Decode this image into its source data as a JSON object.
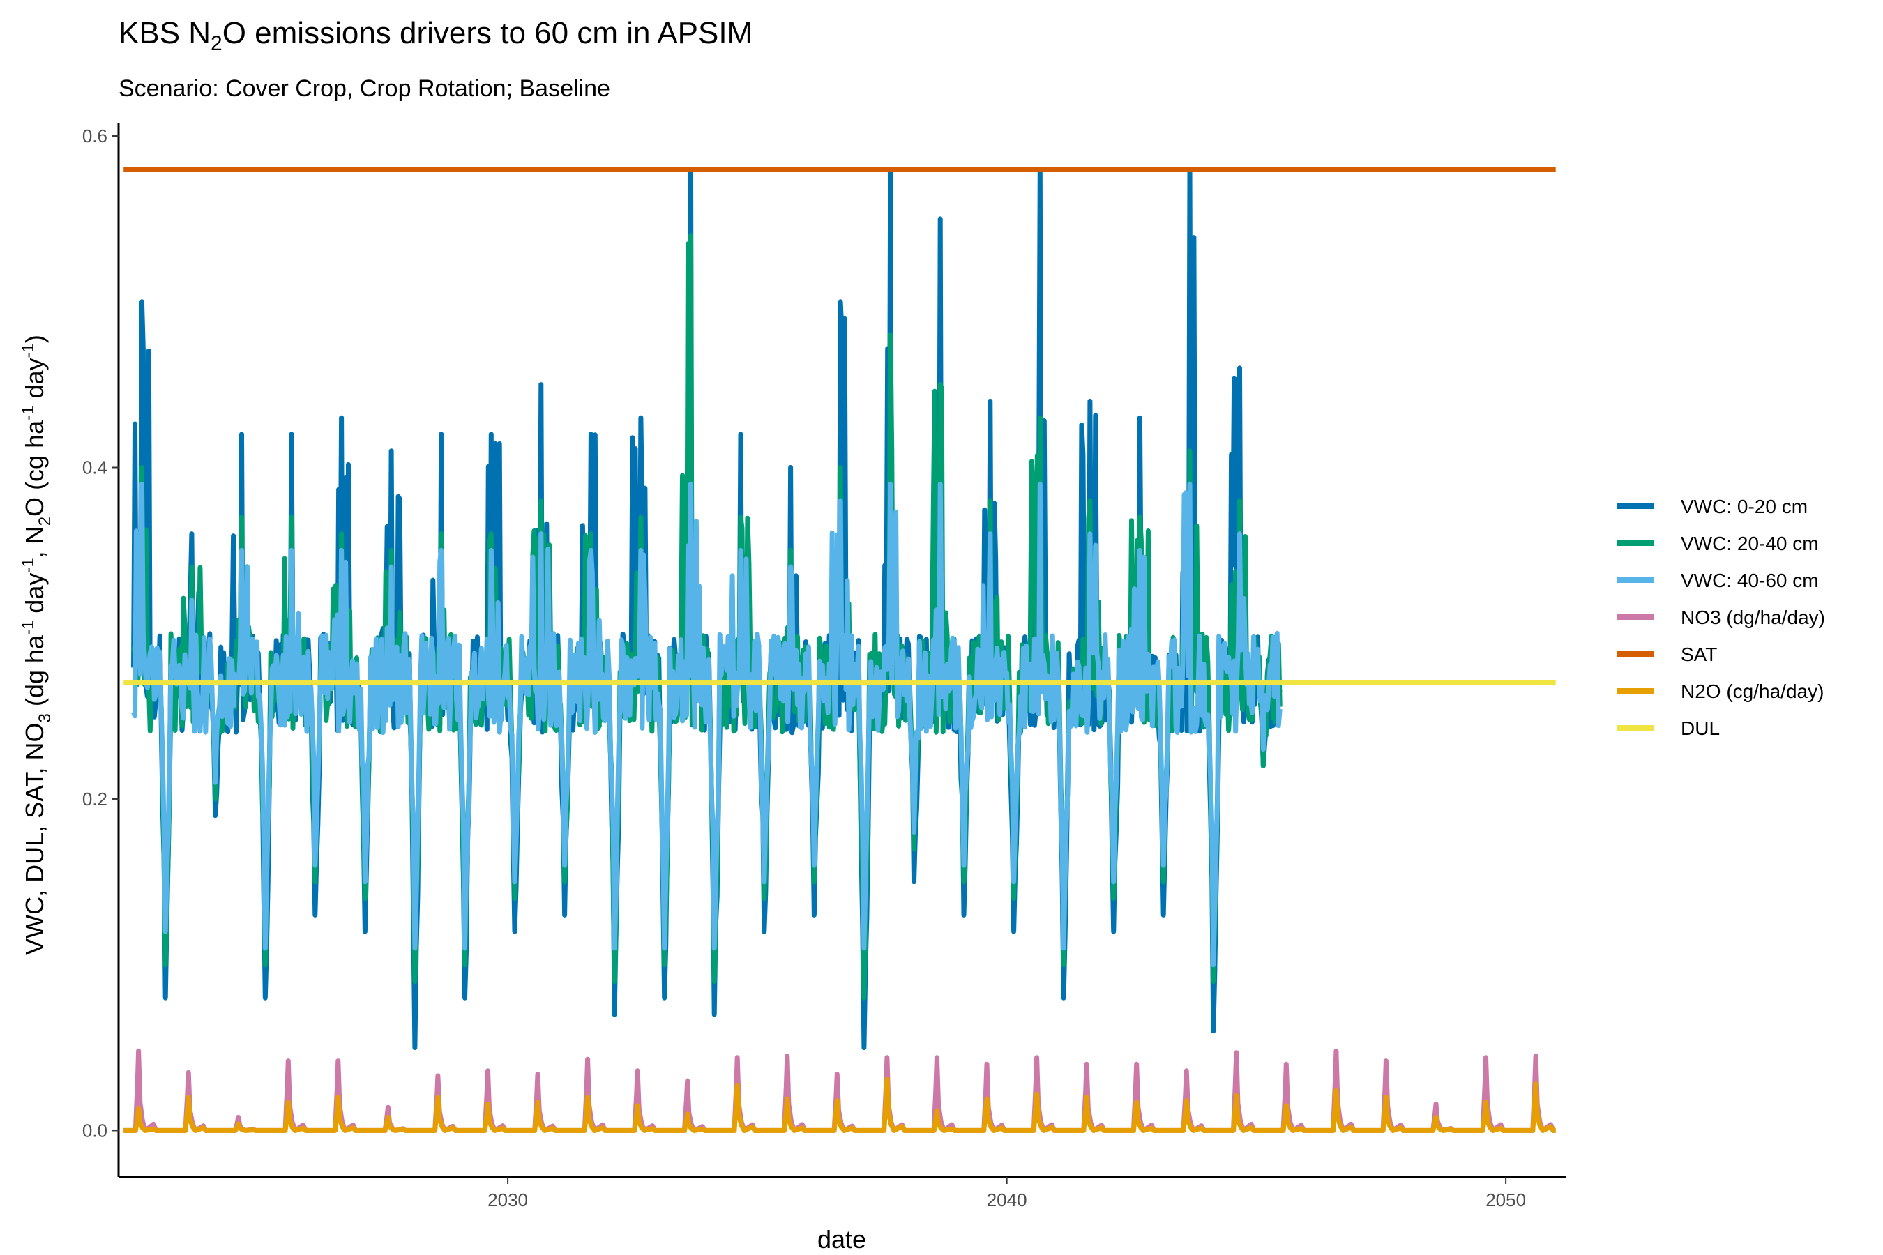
{
  "chart_data": {
    "type": "line",
    "title": {
      "pre": "KBS N",
      "sub": "2",
      "post": "O emissions drivers to 60 cm in APSIM"
    },
    "subtitle": "Scenario: Cover Crop, Crop Rotation; Baseline",
    "xlabel": "date",
    "ylabel": {
      "p1": "VWC, DUL, SAT, NO",
      "s1": "3",
      "p2": " (dg ha",
      "u1": "-1",
      "p3": " day",
      "u2": "-1",
      "p4": ", N",
      "s2": "2",
      "p5": "O  (cg ha",
      "u3": "-1",
      "p6": " day",
      "u4": "-1",
      "p7": ")"
    },
    "xlim": [
      2022.2,
      2051.2
    ],
    "ylim": [
      -0.028,
      0.608
    ],
    "x_ticks": [
      2030,
      2040,
      2050
    ],
    "y_ticks": [
      0.0,
      0.2,
      0.4,
      0.6
    ],
    "y_tick_labels": [
      "0.0",
      "0.2",
      "0.4",
      "0.6"
    ],
    "grid": false,
    "legend_position": "right",
    "series": [
      {
        "name": "VWC: 0-20 cm",
        "color": "#0072B2",
        "style": "daily_vwc",
        "annual_peaks": [
          0.5,
          0.36,
          0.42,
          0.42,
          0.43,
          0.41,
          0.42,
          0.42,
          0.45,
          0.42,
          0.43,
          0.58,
          0.42,
          0.4,
          0.5,
          0.58,
          0.55,
          0.44,
          0.58,
          0.44,
          0.43,
          0.58,
          0.46
        ],
        "annual_minimums": [
          0.08,
          0.19,
          0.08,
          0.13,
          0.12,
          0.05,
          0.08,
          0.12,
          0.13,
          0.07,
          0.08,
          0.07,
          0.12,
          0.13,
          0.05,
          0.15,
          0.13,
          0.12,
          0.08,
          0.12,
          0.13,
          0.06,
          0.22
        ]
      },
      {
        "name": "VWC: 20-40 cm",
        "color": "#009E73",
        "style": "daily_vwc",
        "annual_peaks": [
          0.4,
          0.34,
          0.37,
          0.37,
          0.36,
          0.35,
          0.36,
          0.36,
          0.38,
          0.36,
          0.37,
          0.54,
          0.37,
          0.35,
          0.4,
          0.48,
          0.45,
          0.38,
          0.43,
          0.38,
          0.37,
          0.41,
          0.38
        ],
        "annual_minimums": [
          0.1,
          0.2,
          0.1,
          0.15,
          0.14,
          0.09,
          0.1,
          0.14,
          0.15,
          0.09,
          0.1,
          0.09,
          0.14,
          0.15,
          0.08,
          0.17,
          0.15,
          0.14,
          0.1,
          0.14,
          0.15,
          0.09,
          0.22
        ]
      },
      {
        "name": "VWC: 40-60 cm",
        "color": "#56B4E9",
        "style": "daily_vwc",
        "annual_peaks": [
          0.39,
          0.32,
          0.35,
          0.35,
          0.35,
          0.34,
          0.35,
          0.35,
          0.36,
          0.35,
          0.35,
          0.39,
          0.35,
          0.34,
          0.38,
          0.39,
          0.39,
          0.36,
          0.39,
          0.36,
          0.35,
          0.39,
          0.36
        ],
        "annual_minimums": [
          0.12,
          0.21,
          0.11,
          0.16,
          0.15,
          0.11,
          0.11,
          0.15,
          0.16,
          0.11,
          0.11,
          0.11,
          0.15,
          0.16,
          0.11,
          0.18,
          0.16,
          0.15,
          0.11,
          0.15,
          0.16,
          0.1,
          0.23
        ]
      },
      {
        "name": "NO3 (dg/ha/day)",
        "color": "#CC79A7",
        "style": "annual_spikes",
        "spike_dates": [
          2022.6,
          2023.6,
          2024.6,
          2025.6,
          2026.6,
          2027.6,
          2028.6,
          2029.6,
          2030.6,
          2031.6,
          2032.6,
          2033.6,
          2034.6,
          2035.6,
          2036.6,
          2037.6,
          2038.6,
          2039.6,
          2040.6,
          2041.6,
          2042.6,
          2043.6,
          2044.6,
          2045.6,
          2046.6,
          2047.6,
          2048.6,
          2049.6,
          2050.6
        ],
        "spike_values": [
          0.048,
          0.035,
          0.008,
          0.042,
          0.042,
          0.014,
          0.033,
          0.036,
          0.034,
          0.043,
          0.036,
          0.03,
          0.044,
          0.045,
          0.034,
          0.044,
          0.044,
          0.04,
          0.044,
          0.04,
          0.04,
          0.036,
          0.047,
          0.04,
          0.048,
          0.042,
          0.016,
          0.044,
          0.045
        ]
      },
      {
        "name": "SAT",
        "color": "#D55E00",
        "style": "constant",
        "value": 0.58,
        "x_range": [
          2022.3,
          2051.0
        ]
      },
      {
        "name": "N2O (cg/ha/day)",
        "color": "#E69F00",
        "style": "annual_spikes",
        "spike_dates": [
          2022.6,
          2023.6,
          2024.6,
          2025.6,
          2026.6,
          2027.6,
          2028.6,
          2029.6,
          2030.6,
          2031.6,
          2032.6,
          2033.6,
          2034.6,
          2035.6,
          2036.6,
          2037.6,
          2038.6,
          2039.6,
          2040.6,
          2041.6,
          2042.6,
          2043.6,
          2044.6,
          2045.6,
          2046.6,
          2047.6,
          2048.6,
          2049.6,
          2050.6
        ],
        "spike_values": [
          0.013,
          0.02,
          0.004,
          0.017,
          0.02,
          0.008,
          0.02,
          0.016,
          0.017,
          0.02,
          0.015,
          0.01,
          0.027,
          0.019,
          0.018,
          0.031,
          0.012,
          0.019,
          0.022,
          0.02,
          0.017,
          0.018,
          0.021,
          0.015,
          0.024,
          0.02,
          0.008,
          0.017,
          0.028
        ]
      },
      {
        "name": "DUL",
        "color": "#F0E442",
        "style": "constant",
        "value": 0.27,
        "x_range": [
          2022.3,
          2051.0
        ]
      }
    ]
  }
}
